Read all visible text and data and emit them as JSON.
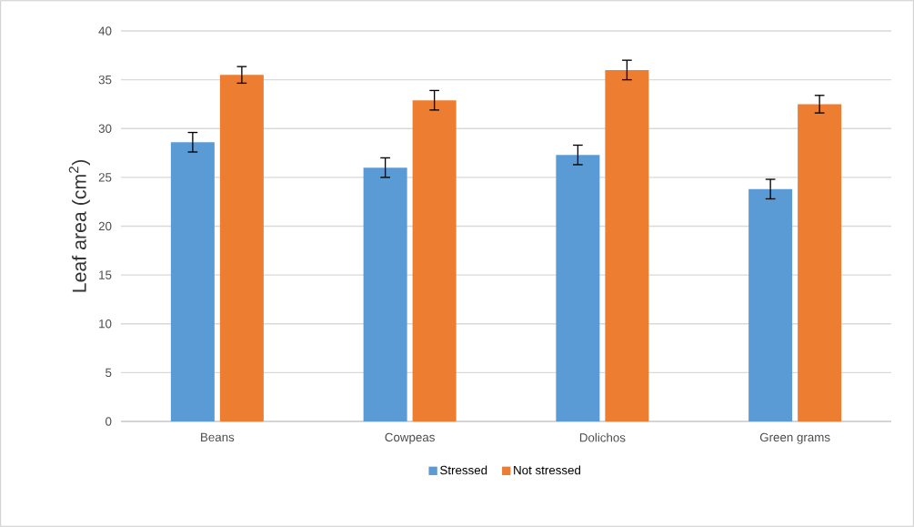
{
  "chart_data": {
    "type": "bar",
    "ylabel": "Leaf area (cm$^{2}$)",
    "categories": [
      "Beans",
      "Cowpeas",
      "Dolichos",
      "Green grams"
    ],
    "series": [
      {
        "name": "Stressed",
        "color": "#5b9bd5",
        "values": [
          28.6,
          26.0,
          27.3,
          23.8
        ],
        "errors": [
          1.0,
          1.0,
          1.0,
          1.0
        ]
      },
      {
        "name": "Not stressed",
        "color": "#ed7d31",
        "values": [
          35.5,
          32.9,
          36.0,
          32.5
        ],
        "errors": [
          0.85,
          1.0,
          1.0,
          0.9
        ]
      }
    ],
    "ylim": [
      0,
      40
    ],
    "yticks": [
      0,
      5,
      10,
      15,
      20,
      25,
      30,
      35,
      40
    ],
    "grid": "y",
    "legend": "bottom"
  }
}
